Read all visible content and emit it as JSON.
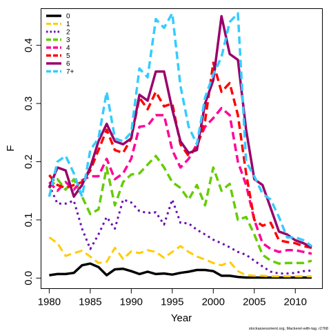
{
  "chart_data": {
    "type": "line",
    "xlabel": "Year",
    "ylabel": "F",
    "xlim": [
      1979,
      2013.3
    ],
    "ylim": [
      -0.018,
      0.463
    ],
    "xticks": [
      1980,
      1985,
      1990,
      1995,
      2000,
      2005,
      2010
    ],
    "yticks": [
      0.0,
      0.1,
      0.2,
      0.3,
      0.4
    ],
    "ytick_labels": [
      "0.0",
      "0.1",
      "0.2",
      "0.3",
      "0.4"
    ],
    "grid": false,
    "legend_position": "top-left",
    "x": [
      1980,
      1981,
      1982,
      1983,
      1984,
      1985,
      1986,
      1987,
      1988,
      1989,
      1990,
      1991,
      1992,
      1993,
      1994,
      1995,
      1996,
      1997,
      1998,
      1999,
      2000,
      2001,
      2002,
      2003,
      2004,
      2005,
      2006,
      2007,
      2008,
      2009,
      2010,
      2011,
      2012
    ],
    "series": [
      {
        "name": "0",
        "color": "#000000",
        "dash": "solid",
        "width": 3.5,
        "values": [
          0.005,
          0.007,
          0.007,
          0.009,
          0.022,
          0.025,
          0.019,
          0.005,
          0.015,
          0.016,
          0.012,
          0.007,
          0.011,
          0.007,
          0.008,
          0.006,
          0.009,
          0.011,
          0.014,
          0.014,
          0.012,
          0.004,
          0.004,
          0.002,
          0.001,
          0.001,
          0.001,
          0.001,
          0.001,
          0.001,
          0.001,
          0.001,
          0.001
        ]
      },
      {
        "name": "1",
        "color": "#ffcc00",
        "dash": "dash",
        "width": 3,
        "values": [
          0.07,
          0.06,
          0.038,
          0.043,
          0.047,
          0.037,
          0.026,
          0.028,
          0.052,
          0.033,
          0.046,
          0.043,
          0.048,
          0.045,
          0.035,
          0.045,
          0.055,
          0.045,
          0.037,
          0.032,
          0.026,
          0.022,
          0.028,
          0.012,
          0.005,
          0.004,
          0.004,
          0.003,
          0.003,
          0.003,
          0.003,
          0.003,
          0.003
        ]
      },
      {
        "name": "2",
        "color": "#6a0dad",
        "dash": "dot",
        "width": 3,
        "values": [
          0.16,
          0.128,
          0.128,
          0.133,
          0.085,
          0.05,
          0.075,
          0.105,
          0.085,
          0.135,
          0.13,
          0.115,
          0.112,
          0.113,
          0.092,
          0.135,
          0.095,
          0.094,
          0.083,
          0.075,
          0.066,
          0.06,
          0.053,
          0.045,
          0.04,
          0.03,
          0.02,
          0.011,
          0.008,
          0.008,
          0.009,
          0.012,
          0.013
        ]
      },
      {
        "name": "3",
        "color": "#66cc00",
        "dash": "dash",
        "width": 3.5,
        "values": [
          0.155,
          0.17,
          0.152,
          0.17,
          0.14,
          0.11,
          0.118,
          0.19,
          0.125,
          0.165,
          0.178,
          0.18,
          0.195,
          0.21,
          0.19,
          0.165,
          0.155,
          0.135,
          0.16,
          0.125,
          0.19,
          0.15,
          0.162,
          0.1,
          0.105,
          0.075,
          0.04,
          0.03,
          0.025,
          0.026,
          0.026,
          0.026,
          0.03
        ]
      },
      {
        "name": "4",
        "color": "#ff0099",
        "dash": "dash",
        "width": 3.5,
        "values": [
          0.165,
          0.15,
          0.165,
          0.152,
          0.168,
          0.175,
          0.175,
          0.205,
          0.17,
          0.18,
          0.205,
          0.26,
          0.262,
          0.28,
          0.28,
          0.22,
          0.19,
          0.205,
          0.23,
          0.26,
          0.275,
          0.292,
          0.28,
          0.2,
          0.16,
          0.1,
          0.06,
          0.05,
          0.045,
          0.048,
          0.048,
          0.045,
          0.042
        ]
      },
      {
        "name": "5",
        "color": "#ff0000",
        "dash": "dash",
        "width": 3.5,
        "values": [
          0.177,
          0.16,
          0.155,
          0.16,
          0.165,
          0.185,
          0.22,
          0.255,
          0.22,
          0.215,
          0.24,
          0.31,
          0.29,
          0.32,
          0.295,
          0.3,
          0.23,
          0.21,
          0.225,
          0.27,
          0.37,
          0.32,
          0.335,
          0.28,
          0.18,
          0.1,
          0.09,
          0.095,
          0.065,
          0.062,
          0.06,
          0.055,
          0.052
        ]
      },
      {
        "name": "6",
        "color": "#99006b",
        "dash": "solid",
        "width": 3.5,
        "values": [
          0.155,
          0.19,
          0.185,
          0.14,
          0.16,
          0.19,
          0.235,
          0.265,
          0.235,
          0.23,
          0.24,
          0.315,
          0.305,
          0.355,
          0.355,
          0.29,
          0.235,
          0.215,
          0.22,
          0.3,
          0.34,
          0.45,
          0.385,
          0.375,
          0.255,
          0.17,
          0.16,
          0.12,
          0.08,
          0.075,
          0.065,
          0.06,
          0.053
        ]
      },
      {
        "name": "7+",
        "color": "#33ccff",
        "dash": "dash",
        "width": 3.5,
        "values": [
          0.14,
          0.2,
          0.21,
          0.18,
          0.14,
          0.22,
          0.24,
          0.32,
          0.24,
          0.235,
          0.25,
          0.36,
          0.345,
          0.445,
          0.43,
          0.455,
          0.33,
          0.26,
          0.23,
          0.31,
          0.35,
          0.38,
          0.44,
          0.455,
          0.2,
          0.175,
          0.145,
          0.135,
          0.105,
          0.07,
          0.07,
          0.065,
          0.055
        ]
      }
    ],
    "credit": "stockassessment.org, Mackerel-with-tag, r2768"
  }
}
